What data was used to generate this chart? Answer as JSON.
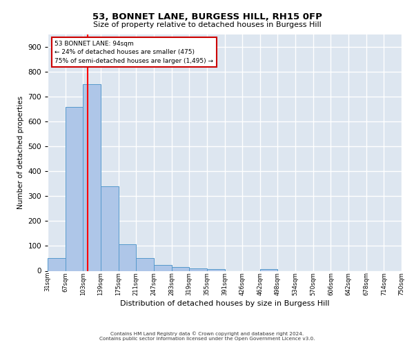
{
  "title1": "53, BONNET LANE, BURGESS HILL, RH15 0FP",
  "title2": "Size of property relative to detached houses in Burgess Hill",
  "xlabel": "Distribution of detached houses by size in Burgess Hill",
  "ylabel": "Number of detached properties",
  "footnote1": "Contains HM Land Registry data © Crown copyright and database right 2024.",
  "footnote2": "Contains public sector information licensed under the Open Government Licence v3.0.",
  "bin_edges": [
    "31sqm",
    "67sqm",
    "103sqm",
    "139sqm",
    "175sqm",
    "211sqm",
    "247sqm",
    "283sqm",
    "319sqm",
    "355sqm",
    "391sqm",
    "426sqm",
    "462sqm",
    "498sqm",
    "534sqm",
    "570sqm",
    "606sqm",
    "642sqm",
    "678sqm",
    "714sqm",
    "750sqm"
  ],
  "bar_values": [
    50,
    660,
    750,
    340,
    108,
    50,
    23,
    15,
    10,
    8,
    0,
    0,
    8,
    0,
    0,
    0,
    0,
    0,
    0,
    0
  ],
  "bar_color": "#aec6e8",
  "bar_edge_color": "#5599cc",
  "ylim": [
    0,
    950
  ],
  "yticks": [
    0,
    100,
    200,
    300,
    400,
    500,
    600,
    700,
    800,
    900
  ],
  "red_line_x": 1.75,
  "annotation_line1": "53 BONNET LANE: 94sqm",
  "annotation_line2": "← 24% of detached houses are smaller (475)",
  "annotation_line3": "75% of semi-detached houses are larger (1,495) →",
  "ann_face_color": "#ffffff",
  "ann_edge_color": "#cc0000",
  "bg_color": "#dde6f0",
  "grid_color": "#ffffff",
  "fig_face_color": "#ffffff"
}
